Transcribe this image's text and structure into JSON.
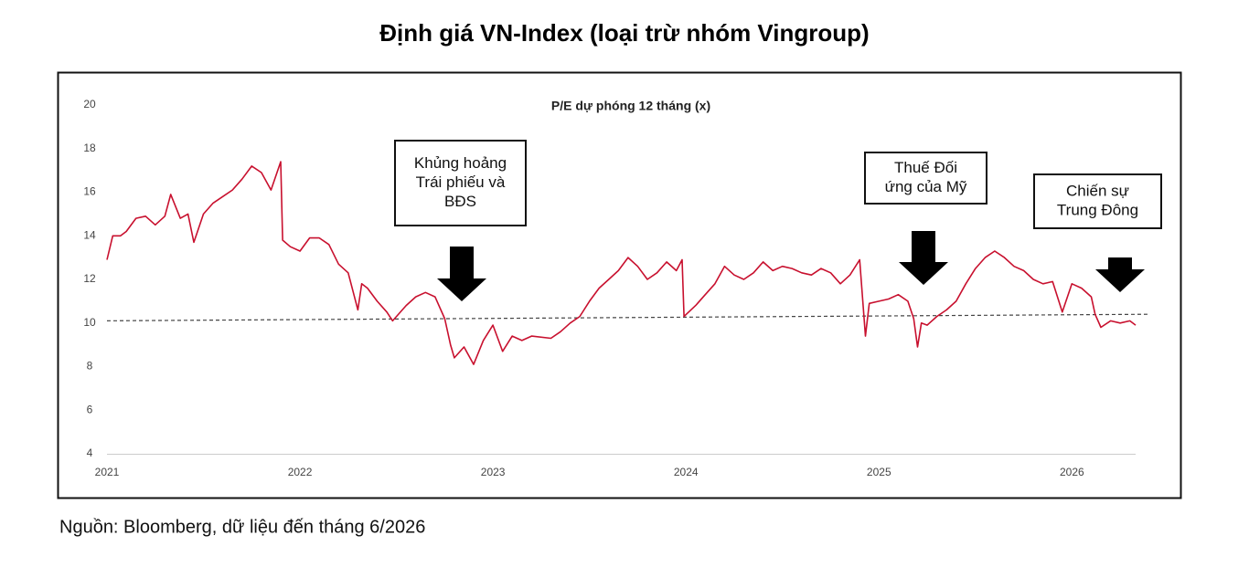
{
  "chart_data": {
    "type": "line",
    "title": "Định giá VN-Index (loại trừ nhóm Vingroup)",
    "subtitle": "P/E dự phóng 12 tháng (x)",
    "source": "Nguồn: Bloomberg, dữ liệu đến tháng 6/2026",
    "xlim": [
      2021,
      2026.33
    ],
    "xticks": [
      2021,
      2022,
      2023,
      2024,
      2025,
      2026
    ],
    "ylim": [
      4,
      20
    ],
    "yticks": [
      4,
      6,
      8,
      10,
      12,
      14,
      16,
      18,
      20
    ],
    "series": [
      {
        "color": "#c8102e",
        "x": [
          2021,
          2021.03,
          2021.07,
          2021.1,
          2021.15,
          2021.2,
          2021.25,
          2021.3,
          2021.33,
          2021.38,
          2021.42,
          2021.45,
          2021.5,
          2021.55,
          2021.6,
          2021.65,
          2021.7,
          2021.75,
          2021.8,
          2021.85,
          2021.9,
          2021.91,
          2021.95,
          2022,
          2022.05,
          2022.1,
          2022.15,
          2022.2,
          2022.25,
          2022.3,
          2022.32,
          2022.35,
          2022.4,
          2022.45,
          2022.48,
          2022.55,
          2022.6,
          2022.65,
          2022.7,
          2022.75,
          2022.78,
          2022.8,
          2022.85,
          2022.9,
          2022.95,
          2023,
          2023.05,
          2023.1,
          2023.15,
          2023.2,
          2023.3,
          2023.35,
          2023.4,
          2023.45,
          2023.5,
          2023.55,
          2023.6,
          2023.65,
          2023.7,
          2023.75,
          2023.8,
          2023.85,
          2023.9,
          2023.95,
          2023.98,
          2023.99,
          2024.05,
          2024.1,
          2024.15,
          2024.2,
          2024.25,
          2024.3,
          2024.35,
          2024.4,
          2024.45,
          2024.5,
          2024.55,
          2024.6,
          2024.65,
          2024.7,
          2024.75,
          2024.8,
          2024.85,
          2024.9,
          2024.93,
          2024.95,
          2025,
          2025.05,
          2025.1,
          2025.15,
          2025.18,
          2025.2,
          2025.22,
          2025.25,
          2025.3,
          2025.35,
          2025.4,
          2025.45,
          2025.5,
          2025.55,
          2025.6,
          2025.65,
          2025.7,
          2025.75,
          2025.8,
          2025.85,
          2025.9,
          2025.95,
          2026,
          2026.05,
          2026.1,
          2026.12,
          2026.15,
          2026.2,
          2026.25,
          2026.3,
          2026.33
        ],
        "values": [
          12.9,
          14.0,
          14.0,
          14.2,
          14.8,
          14.9,
          14.5,
          14.9,
          15.9,
          14.8,
          15.0,
          13.7,
          15.0,
          15.5,
          15.8,
          16.1,
          16.6,
          17.2,
          16.9,
          16.1,
          17.4,
          13.8,
          13.5,
          13.3,
          13.9,
          13.9,
          13.6,
          12.7,
          12.3,
          10.6,
          11.8,
          11.6,
          11.0,
          10.5,
          10.1,
          10.8,
          11.2,
          11.4,
          11.2,
          10.2,
          9.0,
          8.4,
          8.9,
          8.1,
          9.2,
          9.9,
          8.7,
          9.4,
          9.2,
          9.4,
          9.3,
          9.6,
          10.0,
          10.3,
          11.0,
          11.6,
          12.0,
          12.4,
          13.0,
          12.6,
          12.0,
          12.3,
          12.8,
          12.4,
          12.9,
          10.3,
          10.8,
          11.3,
          11.8,
          12.6,
          12.2,
          12.0,
          12.3,
          12.8,
          12.4,
          12.6,
          12.5,
          12.3,
          12.2,
          12.5,
          12.3,
          11.8,
          12.2,
          12.9,
          9.4,
          10.9,
          11.0,
          11.1,
          11.3,
          11.0,
          10.2,
          8.9,
          10.0,
          9.9,
          10.3,
          10.6,
          11.0,
          11.8,
          12.5,
          13.0,
          13.3,
          13.0,
          12.6,
          12.4,
          12.0,
          11.8,
          11.9,
          10.5,
          11.8,
          11.6,
          11.2,
          10.4,
          9.8,
          10.1,
          10.0,
          10.1,
          9.9
        ]
      }
    ],
    "mean_line": {
      "x": [
        2021,
        2026.4
      ],
      "values": [
        10.1,
        10.4
      ]
    },
    "annotations": [
      {
        "lines": [
          "Khủng hoảng",
          "Trái phiếu và",
          "BĐS"
        ]
      },
      {
        "lines": [
          "Thuế Đối",
          "ứng của Mỹ"
        ]
      },
      {
        "lines": [
          "Chiến sự",
          "Trung Đông"
        ]
      }
    ]
  }
}
